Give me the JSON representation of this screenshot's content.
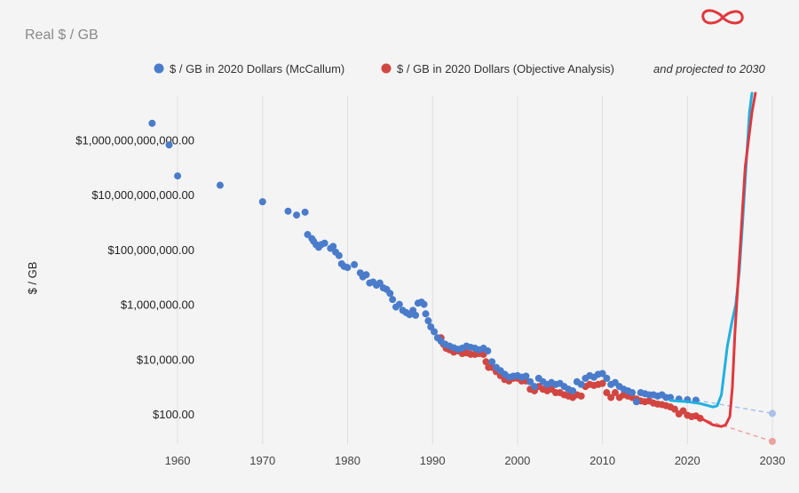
{
  "chart_data": {
    "type": "scatter",
    "title": "Real $ / GB",
    "ylabel": "$ / GB",
    "xlabel": "",
    "yscale": "log",
    "xlim": [
      1955.5,
      2030
    ],
    "ylim_exponents": [
      0.9,
      13.6
    ],
    "x_ticks": [
      1960,
      1970,
      1980,
      1990,
      2000,
      2010,
      2020,
      2030
    ],
    "x_tick_labels": [
      "1960",
      "1970",
      "1980",
      "1990",
      "2000",
      "2010",
      "2020",
      "2030"
    ],
    "y_ticks": [
      100,
      10000,
      1000000,
      100000000,
      10000000000,
      1000000000000
    ],
    "y_tick_labels": [
      "$100.00",
      "$10,000.00",
      "$1,000,000.00",
      "$100,000,000.00",
      "$10,000,000,000.00",
      "$1,000,000,000,000.00"
    ],
    "grid": "vertical",
    "legend_position": "top",
    "legend_suffix": "and projected to 2030",
    "colors": {
      "mccallum": "#4a7ccb",
      "objective": "#d24641",
      "overlay_blue": "#1fb0e0",
      "overlay_red": "#e0383e",
      "grid": "#dedede"
    },
    "series": [
      {
        "name": "$ / GB in 2020 Dollars (McCallum)",
        "color": "#4a7ccb",
        "points": [
          [
            1957,
            4000000000000.0
          ],
          [
            1959,
            650000000000.0
          ],
          [
            1960,
            48000000000.0
          ],
          [
            1965,
            22000000000.0
          ],
          [
            1970,
            5500000000.0
          ],
          [
            1973,
            2500000000.0
          ],
          [
            1974,
            1800000000.0
          ],
          [
            1975,
            2300000000.0
          ],
          [
            1975.3,
            350000000.0
          ],
          [
            1975.8,
            250000000.0
          ],
          [
            1976,
            200000000.0
          ],
          [
            1976.3,
            150000000.0
          ],
          [
            1976.6,
            120000000.0
          ],
          [
            1976.9,
            150000000.0
          ],
          [
            1977.3,
            170000000.0
          ],
          [
            1978,
            110000000.0
          ],
          [
            1978.3,
            130000000.0
          ],
          [
            1978.6,
            80000000.0
          ],
          [
            1979,
            60000000.0
          ],
          [
            1979.3,
            30000000.0
          ],
          [
            1979.6,
            24000000.0
          ],
          [
            1980,
            22000000.0
          ],
          [
            1980.8,
            28000000.0
          ],
          [
            1981.5,
            14000000.0
          ],
          [
            1981.8,
            10000000.0
          ],
          [
            1982.2,
            12000000.0
          ],
          [
            1982.6,
            6000000.0
          ],
          [
            1983,
            6500000.0
          ],
          [
            1983.4,
            5000000.0
          ],
          [
            1983.8,
            6000000.0
          ],
          [
            1984.2,
            4000000.0
          ],
          [
            1984.6,
            3500000.0
          ],
          [
            1985,
            2500000.0
          ],
          [
            1985.3,
            1500000.0
          ],
          [
            1985.7,
            800000.0
          ],
          [
            1986.1,
            1000000.0
          ],
          [
            1986.5,
            600000.0
          ],
          [
            1986.9,
            500000.0
          ],
          [
            1987.3,
            420000.0
          ],
          [
            1987.7,
            600000.0
          ],
          [
            1988,
            400000.0
          ],
          [
            1988.3,
            1100000.0
          ],
          [
            1988.7,
            1200000.0
          ],
          [
            1989,
            1000000.0
          ],
          [
            1989.2,
            450000.0
          ],
          [
            1989.5,
            250000.0
          ],
          [
            1989.8,
            150000.0
          ],
          [
            1990.2,
            100000.0
          ],
          [
            1990.6,
            60000.0
          ],
          [
            1991,
            45000.0
          ],
          [
            1991.5,
            35000.0
          ],
          [
            1992,
            30000.0
          ],
          [
            1992.5,
            26000.0
          ],
          [
            1993,
            23000.0
          ],
          [
            1993.5,
            25000.0
          ],
          [
            1994,
            30000.0
          ],
          [
            1994.5,
            27000.0
          ],
          [
            1995,
            25000.0
          ],
          [
            1995.5,
            22000.0
          ],
          [
            1996,
            25000.0
          ],
          [
            1996.5,
            20000.0
          ],
          [
            1997,
            8000.0
          ],
          [
            1997.5,
            5000.0
          ],
          [
            1998,
            3800.0
          ],
          [
            1998.5,
            2800.0
          ],
          [
            1999,
            2200.0
          ],
          [
            1999.5,
            2400.0
          ],
          [
            2000,
            2500.0
          ],
          [
            2000.5,
            2200.0
          ],
          [
            2001,
            2400.0
          ],
          [
            2001.5,
            1500.0
          ],
          [
            2002,
            1000.0
          ],
          [
            2002.5,
            2000.0
          ],
          [
            2003,
            1500.0
          ],
          [
            2003.5,
            1200.0
          ],
          [
            2004,
            1400.0
          ],
          [
            2004.5,
            1200.0
          ],
          [
            2005,
            1300.0
          ],
          [
            2005.5,
            1000.0
          ],
          [
            2006,
            800.0
          ],
          [
            2006.5,
            700.0
          ],
          [
            2007,
            1500.0
          ],
          [
            2007.5,
            1200.0
          ],
          [
            2008,
            2000.0
          ],
          [
            2008.5,
            2500.0
          ],
          [
            2009,
            2200.0
          ],
          [
            2009.5,
            2800.0
          ],
          [
            2010,
            3000.0
          ],
          [
            2010.5,
            2000.0
          ],
          [
            2011,
            1200.0
          ],
          [
            2011.5,
            1400.0
          ],
          [
            2012,
            1000.0
          ],
          [
            2012.5,
            800.0
          ],
          [
            2013,
            700.0
          ],
          [
            2013.5,
            600.0
          ],
          [
            2014,
            280.0
          ],
          [
            2014.5,
            600.0
          ],
          [
            2015,
            550.0
          ],
          [
            2015.5,
            500.0
          ],
          [
            2016,
            500.0
          ],
          [
            2016.5,
            450.0
          ],
          [
            2017,
            500.0
          ],
          [
            2017.5,
            400.0
          ],
          [
            2018,
            400.0
          ],
          [
            2019,
            350.0
          ],
          [
            2020,
            330.0
          ],
          [
            2021,
            320.0
          ]
        ]
      },
      {
        "name": "$ / GB in 2020 Dollars (Objective Analysis)",
        "color": "#d24641",
        "points": [
          [
            1991,
            60000.0
          ],
          [
            1991.3,
            35000.0
          ],
          [
            1991.6,
            25000.0
          ],
          [
            1992,
            22000.0
          ],
          [
            1992.5,
            18000.0
          ],
          [
            1993,
            20000.0
          ],
          [
            1993.5,
            16000.0
          ],
          [
            1994,
            17000.0
          ],
          [
            1994.5,
            15000.0
          ],
          [
            1995,
            15000.0
          ],
          [
            1995.5,
            16000.0
          ],
          [
            1996,
            15000.0
          ],
          [
            1996.3,
            8000.0
          ],
          [
            1996.6,
            5000.0
          ],
          [
            1997,
            5000.0
          ],
          [
            1997.5,
            3500.0
          ],
          [
            1998,
            2500.0
          ],
          [
            1998.5,
            1800.0
          ],
          [
            1999,
            1600.0
          ],
          [
            1999.5,
            2000.0
          ],
          [
            2000,
            2000.0
          ],
          [
            2000.5,
            1600.0
          ],
          [
            2001,
            1600.0
          ],
          [
            2001.5,
            800.0
          ],
          [
            2002,
            700.0
          ],
          [
            2002.5,
            1000.0
          ],
          [
            2003,
            800.0
          ],
          [
            2003.5,
            700.0
          ],
          [
            2004,
            800.0
          ],
          [
            2004.5,
            600.0
          ],
          [
            2005,
            600.0
          ],
          [
            2005.5,
            500.0
          ],
          [
            2006,
            450.0
          ],
          [
            2006.5,
            400.0
          ],
          [
            2007,
            500.0
          ],
          [
            2007.5,
            450.0
          ],
          [
            2008,
            1000.0
          ],
          [
            2008.5,
            1200.0
          ],
          [
            2009,
            1100.0
          ],
          [
            2009.5,
            1200.0
          ],
          [
            2010,
            1300.0
          ],
          [
            2010.5,
            600.0
          ],
          [
            2011,
            400.0
          ],
          [
            2011.5,
            600.0
          ],
          [
            2012,
            400.0
          ],
          [
            2012.5,
            500.0
          ],
          [
            2013,
            450.0
          ],
          [
            2013.5,
            400.0
          ],
          [
            2014,
            350.0
          ],
          [
            2014.5,
            300.0
          ],
          [
            2015,
            280.0
          ],
          [
            2015.5,
            300.0
          ],
          [
            2016,
            250.0
          ],
          [
            2016.5,
            230.0
          ],
          [
            2017,
            220.0
          ],
          [
            2017.5,
            200.0
          ],
          [
            2018,
            180.0
          ],
          [
            2018.5,
            150.0
          ],
          [
            2019,
            100.0
          ],
          [
            2019.5,
            130.0
          ],
          [
            2020,
            90.0
          ],
          [
            2020.5,
            80.0
          ],
          [
            2021,
            85.0
          ],
          [
            2021.5,
            70.0
          ]
        ]
      }
    ],
    "projections": [
      {
        "series": "$ / GB in 2020 Dollars (McCallum)",
        "color": "#a9c0e8",
        "from": [
          2021,
          320
        ],
        "to": [
          2030,
          105
        ]
      },
      {
        "series": "$ / GB in 2020 Dollars (Objective Analysis)",
        "color": "#eaa29f",
        "from": [
          2021.5,
          70
        ],
        "to": [
          2030,
          10
        ]
      }
    ],
    "annotations": [
      {
        "kind": "hand-drawn-line",
        "color": "#1fb0e0",
        "points": [
          [
            2018,
            310
          ],
          [
            2020,
            280
          ],
          [
            2021.5,
            240
          ],
          [
            2022.5,
            200
          ],
          [
            2023,
            180
          ],
          [
            2023.5,
            200
          ],
          [
            2024,
            500
          ],
          [
            2024.7,
            30000.0
          ],
          [
            2025.2,
            200000.0
          ],
          [
            2025.7,
            1000000.0
          ],
          [
            2026.1,
            15000000.0
          ],
          [
            2026.5,
            1000000000.0
          ],
          [
            2026.9,
            100000000000.0
          ],
          [
            2027.3,
            10000000000000.0
          ],
          [
            2027.6,
            50000000000000.0
          ]
        ]
      },
      {
        "kind": "hand-drawn-line",
        "color": "#e0383e",
        "points": [
          [
            2021,
            80
          ],
          [
            2022,
            60
          ],
          [
            2023,
            40
          ],
          [
            2024,
            35
          ],
          [
            2024.5,
            40
          ],
          [
            2025,
            80
          ],
          [
            2025.3,
            1000.0
          ],
          [
            2025.6,
            100000.0
          ],
          [
            2026,
            10000000.0
          ],
          [
            2026.4,
            1000000000.0
          ],
          [
            2026.8,
            100000000000.0
          ],
          [
            2027.2,
            1000000000000.0
          ],
          [
            2027.6,
            10000000000000.0
          ],
          [
            2028,
            50000000000000.0
          ]
        ]
      },
      {
        "kind": "hand-drawn-symbol",
        "color": "#e0383e",
        "shape": "infinity"
      }
    ]
  }
}
